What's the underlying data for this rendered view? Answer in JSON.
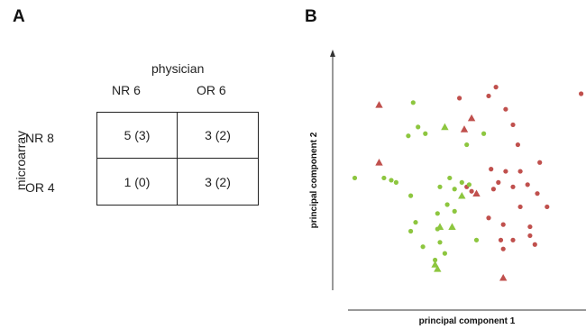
{
  "panel_a": {
    "label": "A",
    "column_title": "physician",
    "row_title": "microarray",
    "columns": [
      "NR  6",
      "OR  6"
    ],
    "rows": [
      "NR  8",
      "OR  4"
    ],
    "cells": [
      [
        "5 (3)",
        "3 (2)"
      ],
      [
        "1 (0)",
        "3 (2)"
      ]
    ]
  },
  "panel_b": {
    "label": "B"
  },
  "chart_data": [
    {
      "type": "table",
      "title": "",
      "column_title": "physician",
      "row_title": "microarray",
      "columns": [
        "NR 6",
        "OR 6"
      ],
      "rows": [
        "NR 8",
        "OR 4"
      ],
      "cells": [
        [
          "5 (3)",
          "3 (2)"
        ],
        [
          "1 (0)",
          "3 (2)"
        ]
      ]
    },
    {
      "type": "scatter",
      "title": "",
      "xlabel": "principal component 1",
      "ylabel": "principal component 2",
      "xlim": [
        0,
        100
      ],
      "ylim": [
        0,
        100
      ],
      "ticks": false,
      "grid": false,
      "legend": "none",
      "series": [
        {
          "color": "#c0504d",
          "marker": "circle",
          "points": [
            [
              48,
              85
            ],
            [
              60,
              86
            ],
            [
              63,
              90
            ],
            [
              67,
              80
            ],
            [
              70,
              73
            ],
            [
              72,
              64
            ],
            [
              73,
              52
            ],
            [
              67,
              52
            ],
            [
              64,
              47
            ],
            [
              62,
              44
            ],
            [
              61,
              53
            ],
            [
              70,
              45
            ],
            [
              73,
              36
            ],
            [
              76,
              46
            ],
            [
              80,
              42
            ],
            [
              81,
              56
            ],
            [
              84,
              36
            ],
            [
              77,
              27
            ],
            [
              79,
              19
            ],
            [
              66,
              28
            ],
            [
              65,
              21
            ],
            [
              66,
              17
            ],
            [
              70,
              21
            ],
            [
              77,
              23
            ],
            [
              98,
              87
            ],
            [
              60,
              31
            ],
            [
              53,
              43
            ],
            [
              51,
              45
            ]
          ]
        },
        {
          "color": "#c0504d",
          "marker": "triangle",
          "points": [
            [
              15,
              82
            ],
            [
              53,
              76
            ],
            [
              50,
              71
            ],
            [
              15,
              56
            ],
            [
              55,
              42
            ],
            [
              66,
              4
            ]
          ]
        },
        {
          "color": "#8dc63f",
          "marker": "circle",
          "points": [
            [
              29,
              83
            ],
            [
              27,
              68
            ],
            [
              31,
              72
            ],
            [
              34,
              69
            ],
            [
              51,
              64
            ],
            [
              58,
              69
            ],
            [
              20,
              48
            ],
            [
              22,
              47
            ],
            [
              5,
              49
            ],
            [
              28,
              41
            ],
            [
              17,
              49
            ],
            [
              40,
              45
            ],
            [
              46,
              44
            ],
            [
              52,
              46
            ],
            [
              49,
              47
            ],
            [
              43,
              37
            ],
            [
              39,
              33
            ],
            [
              46,
              34
            ],
            [
              30,
              29
            ],
            [
              28,
              25
            ],
            [
              33,
              18
            ],
            [
              39,
              26
            ],
            [
              40,
              20
            ],
            [
              42,
              15
            ],
            [
              38,
              12
            ],
            [
              55,
              21
            ],
            [
              44,
              49
            ]
          ]
        },
        {
          "color": "#8dc63f",
          "marker": "triangle",
          "points": [
            [
              42,
              72
            ],
            [
              49,
              41
            ],
            [
              40,
              27
            ],
            [
              45,
              27
            ],
            [
              38,
              10
            ],
            [
              39,
              8
            ]
          ]
        }
      ]
    }
  ]
}
